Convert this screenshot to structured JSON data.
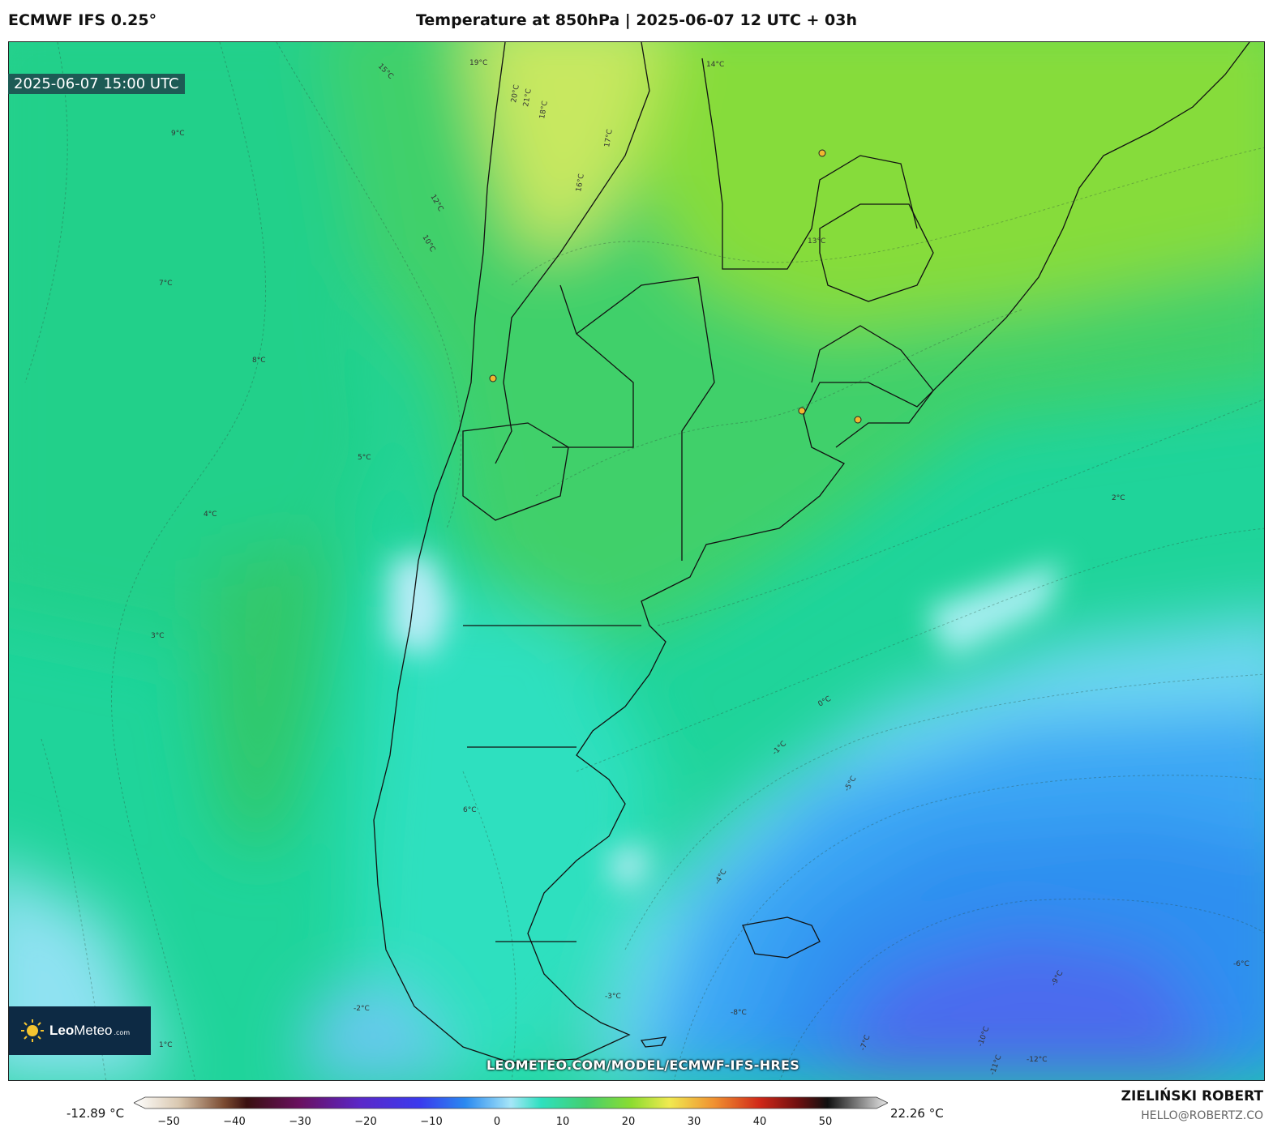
{
  "header": {
    "model": "ECMWF IFS 0.25°",
    "title": "Temperature at 850hPa | 2025-06-07 12 UTC + 03h"
  },
  "map": {
    "valid_time": "2025-06-07 15:00 UTC",
    "contour_labels": [
      "19°C",
      "20°C",
      "21°C",
      "18°C",
      "17°C",
      "16°C",
      "15°C",
      "14°C",
      "13°C",
      "12°C",
      "10°C",
      "9°C",
      "8°C",
      "7°C",
      "6°C",
      "5°C",
      "4°C",
      "3°C",
      "2°C",
      "1°C",
      "0°C",
      "-1°C",
      "-2°C",
      "-3°C",
      "-4°C",
      "-5°C",
      "-6°C",
      "-7°C",
      "-8°C",
      "-9°C",
      "-10°C",
      "-11°C",
      "-12°C"
    ],
    "colors": {
      "warm_yellow": "#e0ea6a",
      "green": "#44cf6f",
      "teal": "#2fe0c0",
      "light_blue": "#a8e6f5",
      "blue": "#2a8af0",
      "deep_blue": "#4f63ec"
    }
  },
  "brand": {
    "logo_bold": "Leo",
    "logo_rest": "Meteo",
    "logo_suffix": ".com"
  },
  "url": "LEOMETEO.COM/MODEL/ECMWF-IFS-HRES",
  "legend": {
    "min_label": "-12.89 °C",
    "max_label": "22.26 °C",
    "ticks": [
      "−50",
      "−40",
      "−30",
      "−20",
      "−10",
      "0",
      "10",
      "20",
      "30",
      "40",
      "50"
    ]
  },
  "author": {
    "name": "ZIELIŃSKI ROBERT",
    "email": "HELLO@ROBERTZ.CO"
  }
}
